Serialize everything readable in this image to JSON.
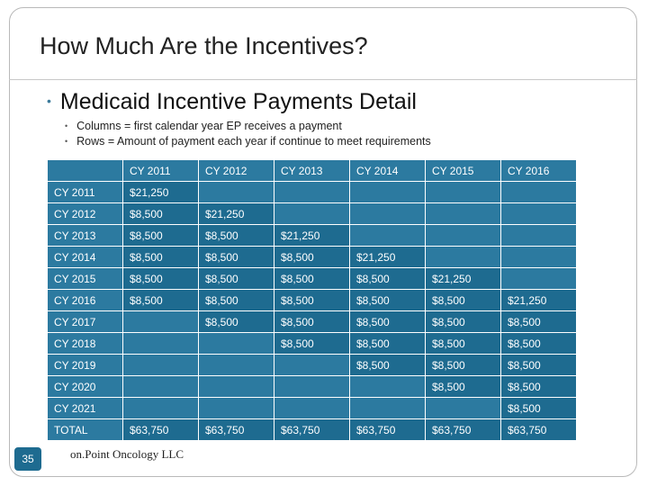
{
  "slide": {
    "title": "How Much Are the Incentives?",
    "bullet": "Medicaid Incentive Payments Detail",
    "sub_bullets": [
      "Columns = first calendar year EP receives a payment",
      "Rows = Amount of payment each year if continue to meet requirements"
    ],
    "number": "35",
    "footer": "on.Point Oncology LLC"
  },
  "table": {
    "columns": [
      "",
      "CY 2011",
      "CY 2012",
      "CY 2013",
      "CY 2014",
      "CY 2015",
      "CY 2016"
    ],
    "rows": [
      {
        "label": "CY 2011",
        "cells": [
          "$21,250",
          "",
          "",
          "",
          "",
          ""
        ]
      },
      {
        "label": "CY 2012",
        "cells": [
          "$8,500",
          "$21,250",
          "",
          "",
          "",
          ""
        ]
      },
      {
        "label": "CY 2013",
        "cells": [
          "$8,500",
          "$8,500",
          "$21,250",
          "",
          "",
          ""
        ]
      },
      {
        "label": "CY 2014",
        "cells": [
          "$8,500",
          "$8,500",
          "$8,500",
          "$21,250",
          "",
          ""
        ]
      },
      {
        "label": "CY 2015",
        "cells": [
          "$8,500",
          "$8,500",
          "$8,500",
          "$8,500",
          "$21,250",
          ""
        ]
      },
      {
        "label": "CY 2016",
        "cells": [
          "$8,500",
          "$8,500",
          "$8,500",
          "$8,500",
          "$8,500",
          "$21,250"
        ]
      },
      {
        "label": "CY 2017",
        "cells": [
          "",
          "$8,500",
          "$8,500",
          "$8,500",
          "$8,500",
          "$8,500"
        ]
      },
      {
        "label": "CY 2018",
        "cells": [
          "",
          "",
          "$8,500",
          "$8,500",
          "$8,500",
          "$8,500"
        ]
      },
      {
        "label": "CY 2019",
        "cells": [
          "",
          "",
          "",
          "$8,500",
          "$8,500",
          "$8,500"
        ]
      },
      {
        "label": "CY 2020",
        "cells": [
          "",
          "",
          "",
          "",
          "$8,500",
          "$8,500"
        ]
      },
      {
        "label": "CY 2021",
        "cells": [
          "",
          "",
          "",
          "",
          "",
          "$8,500"
        ]
      },
      {
        "label": "TOTAL",
        "cells": [
          "$63,750",
          "$63,750",
          "$63,750",
          "$63,750",
          "$63,750",
          "$63,750"
        ]
      }
    ]
  }
}
